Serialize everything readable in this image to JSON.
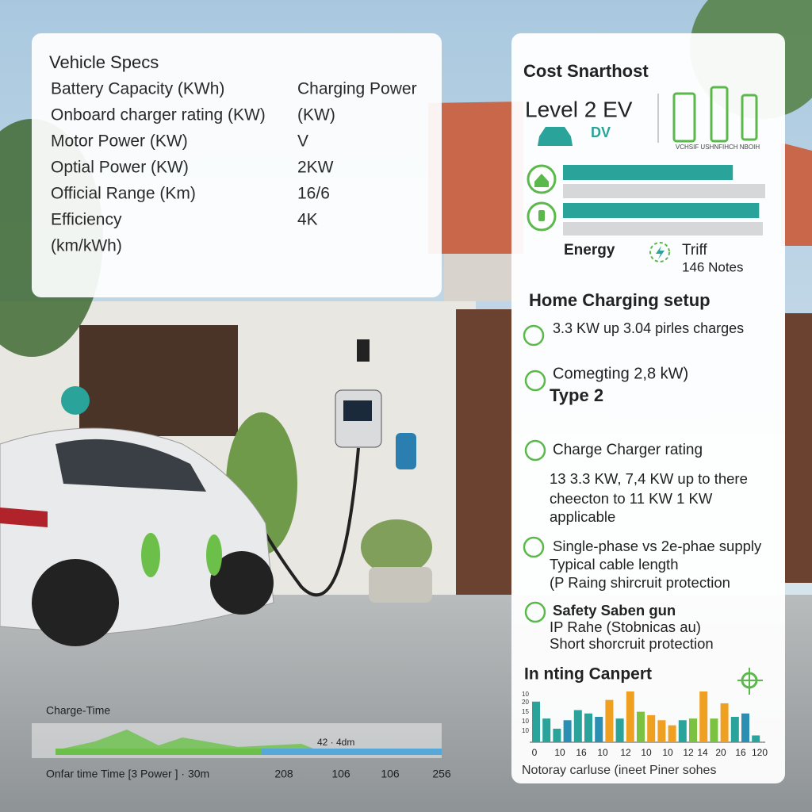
{
  "left_panel": {
    "title": "Vehicle Specs",
    "rows": [
      [
        "Battery Capacity (KWh)",
        "Charging Power"
      ],
      [
        "Onboard charger rating (KW)",
        "(KW)"
      ],
      [
        "Motor Power (KW)",
        "V"
      ],
      [
        "Optial Power (KW)",
        "2KW"
      ],
      [
        "Official Range (Km)",
        "16/6"
      ],
      [
        "Efficiency",
        "4K"
      ],
      [
        "(km/kWh)"
      ]
    ]
  },
  "right_panel": {
    "title": "Cost Snarthost",
    "level": "Level 2 EV",
    "level_sub": "DV",
    "icon_caption": "VCHSIF USHNFIHCH NBOIH",
    "progress": {
      "lim": [
        0,
        100
      ],
      "values": [
        84,
        97
      ]
    },
    "legend": {
      "energy": "Energy",
      "tariff": "Triff",
      "notes": "146 Notes"
    },
    "setup": {
      "title": "Home Charging setup",
      "items": [
        {
          "lines": [
            "3.3 KW up 3.04 pirles charges"
          ]
        },
        {
          "lines": [
            "Comegting 2,8 kW)",
            "Type 2"
          ]
        },
        {
          "lines": [
            "Charge Charger rating",
            "13 3.3 KW, 7,4 KW up to there",
            "cheecton to 11 KW 1 KW",
            "applicable"
          ]
        },
        {
          "lines": [
            "Single-phase vs 2e-phae supply",
            "Typical cable length",
            "(P Raing shircruit protection"
          ]
        },
        {
          "lines": [
            "Safety Saben gun",
            "IP Rahe (Stobnicas au)",
            "Short shorcruit protection"
          ]
        }
      ]
    },
    "chart": {
      "type": "bar",
      "title": "In nting Canpert",
      "ylim": [
        0,
        60
      ],
      "y_labels": [
        "10",
        "20",
        "15",
        "10",
        "10"
      ],
      "x_labels": [
        "0",
        "10",
        "16",
        "10",
        "12",
        "10",
        "10",
        "12",
        "14",
        "20",
        "16",
        "120"
      ],
      "values": [
        48,
        28,
        16,
        26,
        38,
        34,
        30,
        50,
        28,
        60,
        36,
        32,
        26,
        20,
        26,
        28,
        60,
        28,
        46,
        30,
        34,
        8
      ],
      "colors": [
        "#2aa39a",
        "#2aa39a",
        "#2aa39a",
        "#2b8fb3",
        "#2aa39a",
        "#2aa39a",
        "#2b8fb3",
        "#f0a020",
        "#2aa39a",
        "#f0a020",
        "#7cc242",
        "#f0a020",
        "#f0a020",
        "#f0a020",
        "#2aa39a",
        "#7cc242",
        "#f0a020",
        "#7cc242",
        "#f0a020",
        "#2aa39a",
        "#2b8fb3",
        "#2aa39a"
      ],
      "footer": "Notoray carluse (ineet Piner sohes"
    }
  },
  "time_strip": {
    "title": "Charge-Time",
    "marker": "42 · 4dm",
    "axis": [
      "Onfar time Time [3 Power ] · 30m",
      "208",
      "106",
      "106",
      "256"
    ]
  }
}
